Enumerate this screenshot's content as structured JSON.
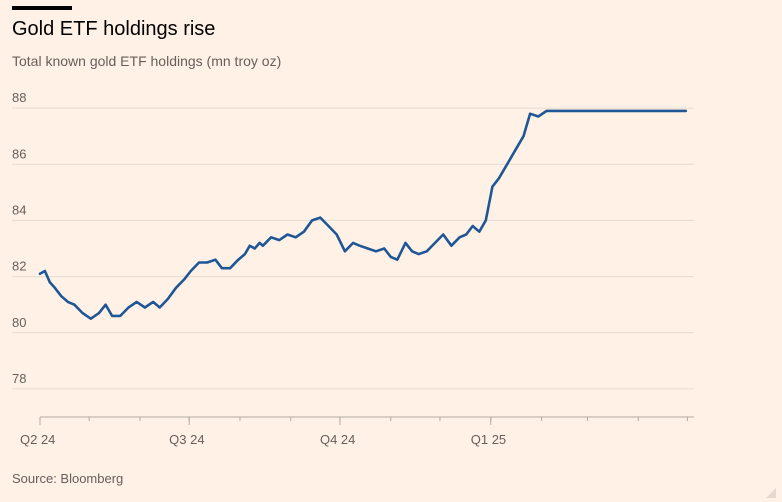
{
  "header": {
    "title": "Gold ETF holdings rise",
    "subtitle": "Total known gold ETF holdings (mn troy oz)"
  },
  "footer": {
    "source": "Source: Bloomberg"
  },
  "colors": {
    "line": "#1f5796",
    "grid": "#e6dbd0",
    "axis": "#b3aaa2",
    "background": "#fff1e5"
  },
  "chart_data": {
    "type": "line",
    "title": "Gold ETF holdings rise",
    "subtitle": "Total known gold ETF holdings (mn troy oz)",
    "xlabel": "",
    "ylabel": "",
    "ylim": [
      77,
      89
    ],
    "yticks": [
      78,
      80,
      82,
      84,
      86,
      88
    ],
    "xlim": [
      "2024-04-01",
      "2025-05-05"
    ],
    "xticks": [
      {
        "label": "Q2 24",
        "date": "2024-04-01"
      },
      {
        "label": "Q3 24",
        "date": "2024-07-01"
      },
      {
        "label": "Q4 24",
        "date": "2024-10-01"
      },
      {
        "label": "Q1 25",
        "date": "2025-01-01"
      }
    ],
    "grid": true,
    "series": [
      {
        "x": [
          "2024-04-01",
          "2024-04-04",
          "2024-04-07",
          "2024-04-10",
          "2024-04-14",
          "2024-04-18",
          "2024-04-22",
          "2024-04-27",
          "2024-05-02",
          "2024-05-07",
          "2024-05-11",
          "2024-05-15",
          "2024-05-20",
          "2024-05-25",
          "2024-05-30",
          "2024-06-04",
          "2024-06-09",
          "2024-06-13",
          "2024-06-18",
          "2024-06-23",
          "2024-06-28",
          "2024-07-02",
          "2024-07-07",
          "2024-07-12",
          "2024-07-17",
          "2024-07-21",
          "2024-07-26",
          "2024-07-31",
          "2024-08-04",
          "2024-08-07",
          "2024-08-10",
          "2024-08-13",
          "2024-08-15",
          "2024-08-20",
          "2024-08-25",
          "2024-08-30",
          "2024-09-04",
          "2024-09-09",
          "2024-09-14",
          "2024-09-19",
          "2024-09-24",
          "2024-09-29",
          "2024-10-04",
          "2024-10-09",
          "2024-10-13",
          "2024-10-18",
          "2024-10-23",
          "2024-10-28",
          "2024-11-01",
          "2024-11-05",
          "2024-11-10",
          "2024-11-14",
          "2024-11-18",
          "2024-11-23",
          "2024-11-28",
          "2024-12-03",
          "2024-12-08",
          "2024-12-13",
          "2024-12-17",
          "2024-12-21",
          "2024-12-25",
          "2024-12-29",
          "2025-01-02",
          "2025-01-06",
          "2025-01-11",
          "2025-01-16",
          "2025-01-21",
          "2025-01-25",
          "2025-01-30",
          "2025-02-04",
          "2025-02-09",
          "2025-02-13",
          "2025-02-16",
          "2025-02-19",
          "2025-02-23",
          "2025-02-27",
          "2025-03-04",
          "2025-03-09",
          "2025-03-13",
          "2025-03-18",
          "2025-03-22",
          "2025-03-26",
          "2025-03-30",
          "2025-04-03",
          "2025-04-07",
          "2025-04-10",
          "2025-04-13",
          "2025-04-16",
          "2025-04-20",
          "2025-04-25",
          "2025-04-30"
        ],
        "values": [
          82.1,
          82.2,
          81.8,
          81.6,
          81.3,
          81.1,
          81.0,
          80.7,
          80.5,
          80.7,
          81.0,
          80.6,
          80.6,
          80.9,
          81.1,
          80.9,
          81.1,
          80.9,
          81.2,
          81.6,
          81.9,
          82.2,
          82.5,
          82.5,
          82.6,
          82.3,
          82.3,
          82.6,
          82.8,
          83.1,
          83.0,
          83.2,
          83.1,
          83.4,
          83.3,
          83.5,
          83.4,
          83.6,
          84.0,
          84.1,
          83.8,
          83.5,
          82.9,
          83.2,
          83.1,
          83.0,
          82.9,
          83.0,
          82.7,
          82.6,
          83.2,
          82.9,
          82.8,
          82.9,
          83.2,
          83.5,
          83.1,
          83.4,
          83.5,
          83.8,
          83.6,
          84.0,
          85.2,
          85.5,
          86.0,
          86.5,
          87.0,
          87.8,
          87.7,
          87.9,
          87.9,
          87.9,
          87.9,
          87.9,
          87.9,
          87.9,
          87.9,
          87.9,
          87.9,
          87.9,
          87.9,
          87.9,
          87.9,
          87.9,
          87.9,
          87.9,
          87.9,
          87.9,
          87.9,
          87.9,
          87.9
        ]
      }
    ]
  }
}
